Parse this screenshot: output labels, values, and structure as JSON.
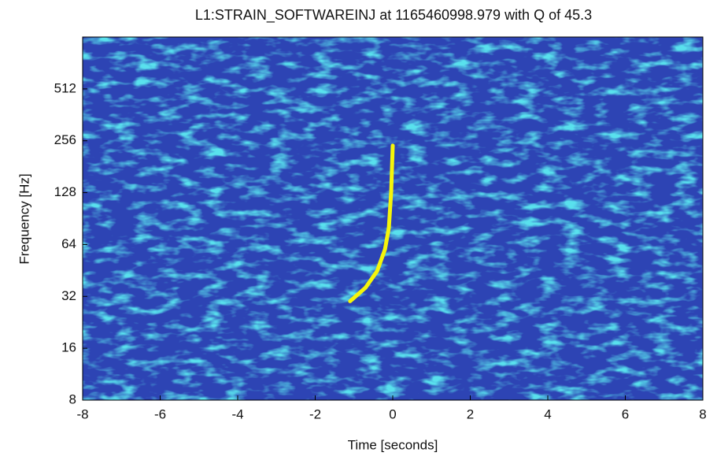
{
  "chart_data": {
    "type": "spectrogram",
    "title": "L1:STRAIN_SOFTWAREINJ at 1165460998.979 with Q of 45.3",
    "x_label": "Time [seconds]",
    "y_label": "Frequency [Hz]",
    "xlim": [
      -8,
      8
    ],
    "xticks": [
      -8,
      -6,
      -4,
      -2,
      0,
      2,
      4,
      6,
      8
    ],
    "ylim": [
      8,
      1024
    ],
    "yticks": [
      8,
      16,
      32,
      64,
      128,
      256,
      512
    ],
    "yscale": "log2",
    "background_color": "#2d44b4",
    "series": [
      {
        "color": "#f5f50a",
        "x": [
          -1.1,
          -0.7,
          -0.4,
          -0.2,
          -0.1,
          -0.04,
          0
        ],
        "values": [
          30,
          36,
          45,
          60,
          80,
          130,
          240
        ]
      }
    ]
  }
}
